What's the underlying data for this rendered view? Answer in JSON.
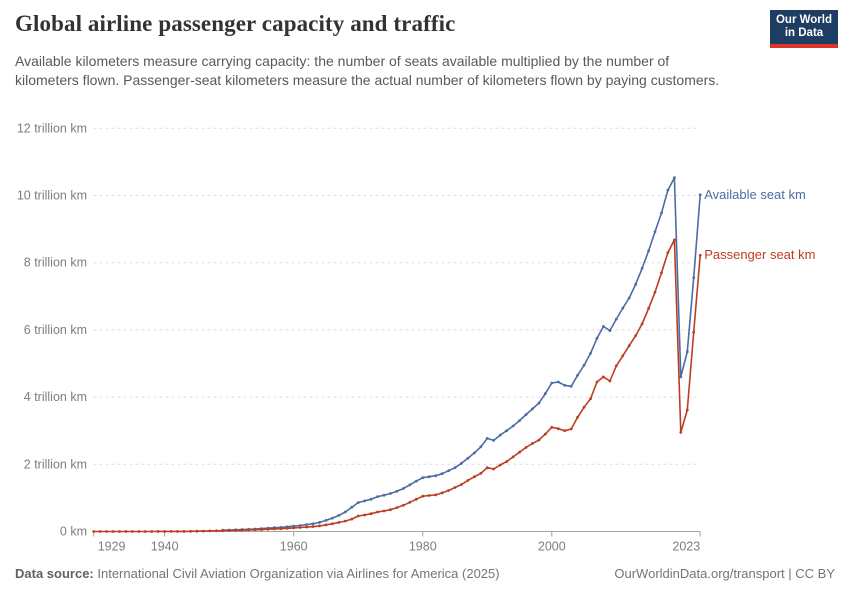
{
  "header": {
    "title": "Global airline passenger capacity and traffic",
    "subtitle": "Available kilometers measure carrying capacity: the number of seats available multiplied by the number of kilometers flown. Passenger-seat kilometers measure the actual number of kilometers flown by paying customers.",
    "logo": {
      "line1": "Our World",
      "line2": "in Data"
    }
  },
  "chart_data": {
    "type": "line",
    "title": "Global airline passenger capacity and traffic",
    "unit": "trillion km",
    "x_range": [
      1929,
      2023
    ],
    "ylim": [
      0,
      12
    ],
    "grid": true,
    "legend_position": "end-of-line",
    "x_ticks": [
      1929,
      1940,
      1960,
      1980,
      2000,
      2023
    ],
    "x_tick_labels": [
      "1929",
      "1940",
      "1960",
      "1980",
      "2000",
      "2023"
    ],
    "y_ticks": [
      0,
      2,
      4,
      6,
      8,
      10,
      12
    ],
    "y_tick_labels": [
      "0 km",
      "2 trillion km",
      "4 trillion km",
      "6 trillion km",
      "8 trillion km",
      "10 trillion km",
      "12 trillion km"
    ],
    "cadence": "annual",
    "series": [
      {
        "name": "Available seat km",
        "color": "#4C6CA4",
        "start_year": 1949,
        "values": [
          0.038,
          0.045,
          0.052,
          0.059,
          0.066,
          0.075,
          0.086,
          0.098,
          0.112,
          0.122,
          0.14,
          0.16,
          0.18,
          0.205,
          0.23,
          0.27,
          0.33,
          0.4,
          0.48,
          0.58,
          0.72,
          0.86,
          0.91,
          0.96,
          1.04,
          1.08,
          1.13,
          1.2,
          1.28,
          1.39,
          1.5,
          1.6,
          1.63,
          1.66,
          1.72,
          1.81,
          1.9,
          2.03,
          2.18,
          2.34,
          2.52,
          2.77,
          2.71,
          2.87,
          3.0,
          3.14,
          3.3,
          3.48,
          3.65,
          3.82,
          4.1,
          4.42,
          4.45,
          4.35,
          4.32,
          4.65,
          4.95,
          5.3,
          5.75,
          6.1,
          5.98,
          6.32,
          6.65,
          6.95,
          7.36,
          7.83,
          8.35,
          8.92,
          9.48,
          10.16,
          10.53,
          4.6,
          5.35,
          7.55,
          10.02
        ]
      },
      {
        "name": "Passenger seat km",
        "color": "#BC3E22",
        "start_year": 1929,
        "values": [
          0.0001,
          0.0002,
          0.0002,
          0.0003,
          0.0004,
          0.0005,
          0.0006,
          0.0008,
          0.001,
          0.0013,
          0.0016,
          0.002,
          0.0025,
          0.003,
          0.004,
          0.0055,
          0.008,
          0.013,
          0.017,
          0.02,
          0.023,
          0.028,
          0.034,
          0.039,
          0.044,
          0.05,
          0.058,
          0.067,
          0.077,
          0.082,
          0.094,
          0.108,
          0.118,
          0.131,
          0.146,
          0.167,
          0.195,
          0.23,
          0.27,
          0.31,
          0.37,
          0.46,
          0.49,
          0.53,
          0.58,
          0.61,
          0.65,
          0.71,
          0.78,
          0.87,
          0.96,
          1.05,
          1.07,
          1.09,
          1.15,
          1.22,
          1.31,
          1.4,
          1.52,
          1.63,
          1.73,
          1.9,
          1.86,
          1.98,
          2.08,
          2.22,
          2.36,
          2.5,
          2.62,
          2.72,
          2.9,
          3.1,
          3.06,
          3.0,
          3.05,
          3.4,
          3.7,
          3.95,
          4.45,
          4.6,
          4.48,
          4.93,
          5.23,
          5.53,
          5.83,
          6.18,
          6.64,
          7.12,
          7.7,
          8.3,
          8.68,
          2.95,
          3.62,
          5.93,
          8.22
        ]
      }
    ]
  },
  "footer": {
    "source_label": "Data source:",
    "source_text": " International Civil Aviation Organization via Airlines for America (2025)",
    "right_text": "OurWorldinData.org/transport | CC BY"
  },
  "colors": {
    "available_seat_km": "#4C6CA4",
    "passenger_seat_km": "#BC3E22",
    "logo_bg": "#1D3D63",
    "logo_accent": "#DC352A",
    "gridline": "#DCDCDC",
    "axis": "#A3A3A3",
    "tick_label": "#7E7E7E"
  }
}
